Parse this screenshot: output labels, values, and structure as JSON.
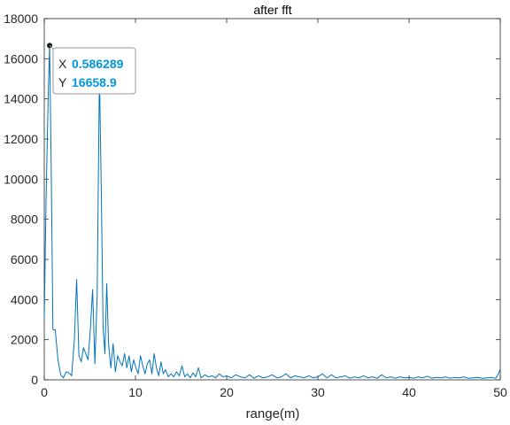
{
  "chart_data": {
    "type": "line",
    "title": "after fft",
    "xlabel": "range(m)",
    "ylabel": "",
    "xlim": [
      0,
      50
    ],
    "ylim": [
      0,
      18000
    ],
    "xticks": [
      0,
      10,
      20,
      30,
      40,
      50
    ],
    "yticks": [
      0,
      2000,
      4000,
      6000,
      8000,
      10000,
      12000,
      14000,
      16000,
      18000
    ],
    "grid": false,
    "line_color": "#0072BD",
    "series": [
      {
        "x": [
          0,
          0.2,
          0.45,
          0.586289,
          0.75,
          0.95,
          1.2,
          1.5,
          1.8,
          2.1,
          2.4,
          2.7,
          3.0,
          3.3,
          3.55,
          3.8,
          4.05,
          4.3,
          4.55,
          4.8,
          5.05,
          5.3,
          5.55,
          5.8,
          6.05,
          6.25,
          6.45,
          6.65,
          6.85,
          7.05,
          7.3,
          7.55,
          7.8,
          8.05,
          8.3,
          8.55,
          8.8,
          9.05,
          9.3,
          9.55,
          9.8,
          10.05,
          10.3,
          10.55,
          10.8,
          11.05,
          11.3,
          11.55,
          11.8,
          12.05,
          12.3,
          12.55,
          12.8,
          13.05,
          13.3,
          13.6,
          13.9,
          14.2,
          14.5,
          14.8,
          15.1,
          15.4,
          15.7,
          16.0,
          16.3,
          16.6,
          16.9,
          17.2,
          17.6,
          18.0,
          18.4,
          18.8,
          19.2,
          19.6,
          20.0,
          20.5,
          21.0,
          21.5,
          22.0,
          22.5,
          23.0,
          23.5,
          24.0,
          24.5,
          25.0,
          25.5,
          26.0,
          26.5,
          27.0,
          27.5,
          28.0,
          28.5,
          29.0,
          29.5,
          30.0,
          30.5,
          31.0,
          31.5,
          32.0,
          32.5,
          33.0,
          33.5,
          34.0,
          34.5,
          35.0,
          35.5,
          36.0,
          36.5,
          37.0,
          37.5,
          38.0,
          38.5,
          39.0,
          39.5,
          40.0,
          40.5,
          41.0,
          41.5,
          42.0,
          42.5,
          43.0,
          43.5,
          44.0,
          44.5,
          45.0,
          45.5,
          46.0,
          46.5,
          47.0,
          47.5,
          48.0,
          48.5,
          49.0,
          49.5,
          49.8,
          50.0
        ],
        "y": [
          3100,
          9000,
          14500,
          16658.9,
          11000,
          2500,
          2500,
          1000,
          250,
          100,
          400,
          350,
          200,
          2000,
          5000,
          1200,
          900,
          1600,
          1300,
          1000,
          2500,
          4500,
          800,
          4200,
          15300,
          9500,
          2600,
          1300,
          4800,
          1800,
          600,
          1800,
          400,
          1200,
          900,
          700,
          1300,
          600,
          1200,
          400,
          1000,
          600,
          300,
          1200,
          700,
          300,
          800,
          1000,
          300,
          1300,
          600,
          200,
          900,
          300,
          500,
          150,
          300,
          150,
          400,
          200,
          700,
          150,
          300,
          100,
          350,
          150,
          600,
          100,
          250,
          150,
          200,
          100,
          300,
          150,
          200,
          100,
          250,
          150,
          100,
          250,
          80,
          200,
          100,
          150,
          250,
          100,
          150,
          300,
          100,
          200,
          150,
          100,
          200,
          100,
          150,
          300,
          100,
          250,
          100,
          150,
          200,
          80,
          150,
          100,
          200,
          100,
          150,
          80,
          250,
          100,
          150,
          80,
          150,
          100,
          120,
          80,
          150,
          100,
          180,
          80,
          120,
          100,
          150,
          80,
          120,
          100,
          150,
          80,
          100,
          120,
          80,
          100,
          120,
          80,
          300,
          550
        ]
      }
    ],
    "datatip": {
      "x_key": "X",
      "x_value": "0.586289",
      "y_key": "Y",
      "y_value": "16658.9",
      "x": 0.586289,
      "y": 16658.9,
      "value_color": "#0096DC"
    }
  }
}
